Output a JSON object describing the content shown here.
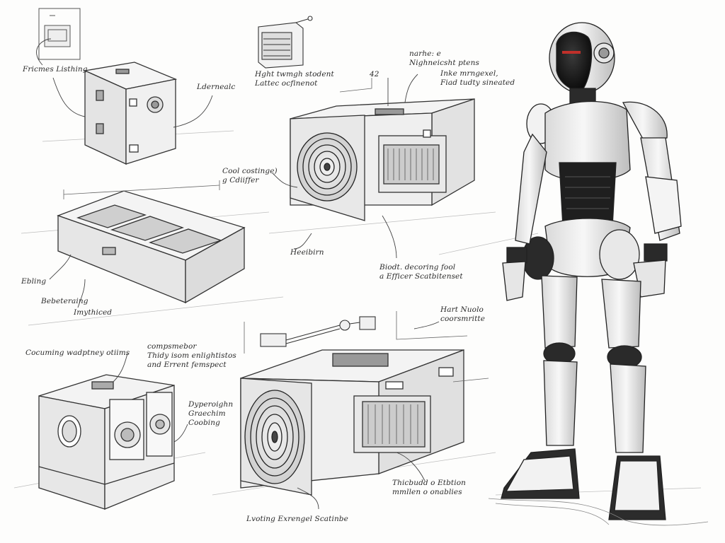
{
  "palette": {
    "paper": "#fdfdfc",
    "ink": "#2a2a2a",
    "robot_visor": "#1a1a1a",
    "robot_eye": "#c0302a"
  },
  "labels": {
    "top_left": [
      "Fricmes Listhing"
    ],
    "top_left_side": [
      "Ldernealc"
    ],
    "top_center": [
      "Hght twmgh stodent",
      "Lattec ocfinenot"
    ],
    "top_right": [
      "narhe: e",
      "Nighneicsht ptens",
      "Inke mrngexel,",
      "Fiad tudty sineated"
    ],
    "mark_42": [
      "42"
    ],
    "cool_left": [
      "Cool costinge)",
      "g Cdiiffer"
    ],
    "heatsink": [
      "Heeibirn"
    ],
    "biodt": [
      "Biodt. decoring fool",
      "a Efficer Scatbitenset"
    ],
    "ebling": [
      "Ebling"
    ],
    "bebeteraing": [
      "Bebeteraing"
    ],
    "imythiced": [
      "Imythiced"
    ],
    "cooling_units": [
      "Cocuming wadptney otiims"
    ],
    "compsmebor": [
      "compsmebor",
      "Thidy isom enlightistos",
      "and Errent femspect"
    ],
    "dyperoight": [
      "Dyperoighn",
      "Graechim",
      "Coobing"
    ],
    "hart_nuolo": [
      "Hart Nuolo",
      "coorsmritte"
    ],
    "thicbudd": [
      "Thicbudd o Etbtion",
      "mmllen o onablies"
    ],
    "bottom": [
      "Lvoting Exrengel Scatinbe"
    ]
  }
}
